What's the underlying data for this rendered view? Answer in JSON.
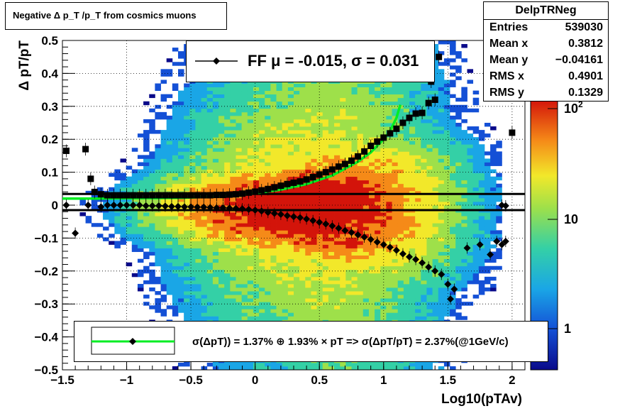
{
  "title": "Negative Δ p_T /p_T from cosmics muons",
  "stats": {
    "name": "DelpTRNeg",
    "rows": [
      {
        "label": "Entries",
        "value": "539030"
      },
      {
        "label": "Mean x",
        "value": "0.3812"
      },
      {
        "label": "Mean y",
        "value": "−0.04161"
      },
      {
        "label": "RMS x",
        "value": "0.4901"
      },
      {
        "label": "RMS y",
        "value": "0.1329"
      }
    ]
  },
  "legend_top": {
    "text": "FF μ = -0.015, σ =   0.031"
  },
  "legend_bottom": {
    "text": "σ(ΔpT)) =  1.37% ⊕  1.93% × pT => σ(ΔpT/pT) =  2.37%(@1GeV/c)"
  },
  "colors": {
    "fit": "#00ee22",
    "marker": "#000000"
  },
  "chart_data": {
    "type": "heatmap",
    "xlabel": "Log10(pTAv)",
    "ylabel": "Δ pT/pT",
    "xlim": [
      -1.5,
      2.1
    ],
    "ylim": [
      -0.5,
      0.5
    ],
    "x_ticks": [
      -1.5,
      -1,
      -0.5,
      0,
      0.5,
      1,
      1.5,
      2
    ],
    "x_tick_labels": [
      "−1.5",
      "−1",
      "−0.5",
      "0",
      "0.5",
      "1",
      "1.5",
      "2"
    ],
    "y_ticks": [
      -0.5,
      -0.4,
      -0.3,
      -0.2,
      -0.1,
      0,
      0.1,
      0.2,
      0.3,
      0.4,
      0.5
    ],
    "y_tick_labels": [
      "−0.5",
      "−0.4",
      "−0.3",
      "−0.2",
      "−0.1",
      "0",
      "0.1",
      "0.2",
      "0.3",
      "0.4",
      "0.5"
    ],
    "z_scale": "log",
    "z_tick_labels": [
      "1",
      "10",
      "10^2"
    ],
    "grid": true,
    "rms_profile": {
      "x": [
        -1.47,
        -1.32,
        -1.28,
        -1.25,
        -1.2,
        -1.15,
        -1.1,
        -1.05,
        -1.0,
        -0.95,
        -0.9,
        -0.85,
        -0.8,
        -0.75,
        -0.7,
        -0.65,
        -0.6,
        -0.55,
        -0.5,
        -0.45,
        -0.4,
        -0.35,
        -0.3,
        -0.25,
        -0.2,
        -0.15,
        -0.1,
        -0.05,
        0.0,
        0.05,
        0.1,
        0.15,
        0.2,
        0.25,
        0.3,
        0.35,
        0.4,
        0.45,
        0.5,
        0.55,
        0.6,
        0.65,
        0.7,
        0.75,
        0.8,
        0.85,
        0.9,
        0.95,
        1.0,
        1.05,
        1.1,
        1.15,
        1.2,
        1.25,
        1.3,
        1.35,
        1.4
      ],
      "y": [
        0.165,
        0.17,
        0.08,
        0.04,
        0.033,
        0.03,
        0.03,
        0.03,
        0.03,
        0.03,
        0.03,
        0.03,
        0.03,
        0.03,
        0.03,
        0.03,
        0.03,
        0.03,
        0.03,
        0.03,
        0.03,
        0.03,
        0.031,
        0.031,
        0.032,
        0.033,
        0.035,
        0.038,
        0.041,
        0.045,
        0.049,
        0.054,
        0.059,
        0.064,
        0.068,
        0.072,
        0.078,
        0.085,
        0.093,
        0.1,
        0.108,
        0.117,
        0.125,
        0.135,
        0.148,
        0.163,
        0.18,
        0.193,
        0.205,
        0.218,
        0.232,
        0.25,
        0.265,
        0.278,
        0.28,
        0.31,
        0.32
      ],
      "extra_points": [
        {
          "x": 1.37,
          "y": 0.375
        },
        {
          "x": 1.43,
          "y": 0.45
        },
        {
          "x": 2.0,
          "y": 0.22
        }
      ]
    },
    "mean_profile": {
      "x": [
        -1.47,
        -1.4,
        -1.3,
        -1.2,
        -1.15,
        -1.1,
        -1.05,
        -1.0,
        -0.95,
        -0.9,
        -0.85,
        -0.8,
        -0.75,
        -0.7,
        -0.65,
        -0.6,
        -0.55,
        -0.5,
        -0.45,
        -0.4,
        -0.35,
        -0.3,
        -0.25,
        -0.2,
        -0.15,
        -0.1,
        -0.05,
        0.0,
        0.05,
        0.1,
        0.15,
        0.2,
        0.25,
        0.3,
        0.35,
        0.4,
        0.45,
        0.5,
        0.55,
        0.6,
        0.65,
        0.7,
        0.75,
        0.8,
        0.85,
        0.9,
        0.95,
        1.0,
        1.05,
        1.1,
        1.15,
        1.2,
        1.25,
        1.3,
        1.35,
        1.4,
        1.45,
        1.5,
        1.52,
        1.55,
        1.65,
        1.75,
        1.83,
        1.88,
        1.92,
        1.95
      ],
      "y": [
        0.0,
        -0.085,
        0.0,
        -0.005,
        0.0,
        0.0,
        0.0,
        0.0,
        0.0,
        0.0,
        -0.002,
        -0.002,
        -0.002,
        -0.003,
        -0.004,
        -0.004,
        -0.005,
        -0.005,
        -0.006,
        -0.006,
        -0.007,
        -0.008,
        -0.008,
        -0.009,
        -0.01,
        -0.011,
        -0.013,
        -0.015,
        -0.018,
        -0.022,
        -0.025,
        -0.028,
        -0.032,
        -0.035,
        -0.038,
        -0.042,
        -0.047,
        -0.052,
        -0.057,
        -0.063,
        -0.07,
        -0.077,
        -0.083,
        -0.09,
        -0.097,
        -0.104,
        -0.112,
        -0.12,
        -0.128,
        -0.137,
        -0.148,
        -0.157,
        -0.165,
        -0.175,
        -0.188,
        -0.2,
        -0.21,
        -0.24,
        -0.285,
        -0.255,
        -0.13,
        -0.12,
        -0.15,
        -0.11,
        -0.12,
        -0.11
      ],
      "extra_points": [
        {
          "x": 1.92,
          "y": 0.0
        },
        {
          "x": 1.95,
          "y": -0.002
        }
      ]
    },
    "fit_curve": {
      "x": [
        -1.5,
        -1.2,
        -0.9,
        -0.6,
        -0.3,
        0.0,
        0.2,
        0.4,
        0.6,
        0.8,
        0.9,
        1.0,
        1.05,
        1.1,
        1.13
      ],
      "y": [
        0.02,
        0.02,
        0.021,
        0.022,
        0.026,
        0.036,
        0.047,
        0.064,
        0.09,
        0.132,
        0.16,
        0.2,
        0.225,
        0.265,
        0.305
      ]
    },
    "hlines": [
      0.034,
      -0.015
    ]
  }
}
